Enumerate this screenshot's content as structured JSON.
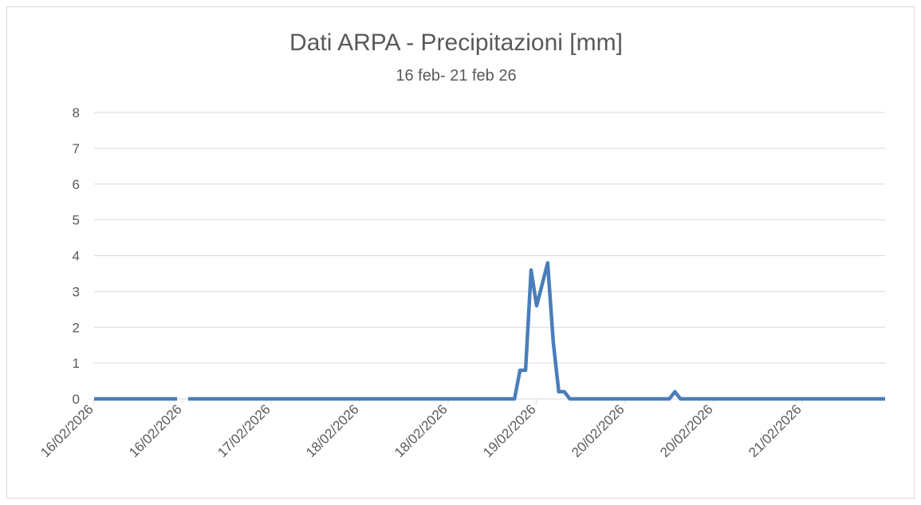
{
  "chart_data": {
    "type": "line",
    "title": "Dati ARPA - Precipitazioni [mm]",
    "subtitle": "16 feb- 21 feb  26",
    "categories": [
      "16/02/2026",
      null,
      null,
      null,
      null,
      null,
      null,
      null,
      null,
      null,
      null,
      null,
      null,
      null,
      null,
      null,
      "16/02/2026",
      null,
      null,
      null,
      null,
      null,
      null,
      null,
      null,
      null,
      null,
      null,
      null,
      null,
      null,
      null,
      "17/02/2026",
      null,
      null,
      null,
      null,
      null,
      null,
      null,
      null,
      null,
      null,
      null,
      null,
      null,
      null,
      null,
      "18/02/2026",
      null,
      null,
      null,
      null,
      null,
      null,
      null,
      null,
      null,
      null,
      null,
      null,
      null,
      null,
      null,
      "18/02/2026",
      null,
      null,
      null,
      null,
      null,
      null,
      null,
      null,
      null,
      null,
      null,
      null,
      null,
      null,
      null,
      "19/02/2026",
      null,
      null,
      null,
      null,
      null,
      null,
      null,
      null,
      null,
      null,
      null,
      null,
      null,
      null,
      null,
      "20/02/2026",
      null,
      null,
      null,
      null,
      null,
      null,
      null,
      null,
      null,
      null,
      null,
      null,
      null,
      null,
      null,
      "20/02/2026",
      null,
      null,
      null,
      null,
      null,
      null,
      null,
      null,
      null,
      null,
      null,
      null,
      null,
      null,
      null,
      "21/02/2026",
      null,
      null,
      null,
      null,
      null,
      null,
      null,
      null,
      null,
      null,
      null,
      null,
      null,
      null,
      null
    ],
    "series": [
      {
        "color": "#4a7ebb",
        "values": [
          0,
          0,
          0,
          0,
          0,
          0,
          0,
          0,
          0,
          0,
          0,
          0,
          0,
          0,
          0,
          0,
          null,
          0,
          0,
          0,
          0,
          0,
          0,
          0,
          0,
          0,
          0,
          0,
          0,
          0,
          0,
          0,
          0,
          0,
          0,
          0,
          0,
          0,
          0,
          0,
          0,
          0,
          0,
          0,
          0,
          0,
          0,
          0,
          0,
          0,
          0,
          0,
          0,
          0,
          0,
          0,
          0,
          0,
          0,
          0,
          0,
          0,
          0,
          0,
          0,
          0,
          0,
          0,
          0,
          0,
          0,
          0,
          0,
          0,
          0,
          0,
          0,
          0.8,
          0.8,
          3.6,
          2.6,
          3.2,
          3.8,
          1.6,
          0.2,
          0.2,
          0,
          0,
          0,
          0,
          0,
          0,
          0,
          0,
          0,
          0,
          0,
          0,
          0,
          0,
          0,
          0,
          0,
          0,
          0,
          0.2,
          0,
          0,
          0,
          0,
          0,
          0,
          0,
          0,
          0,
          0,
          0,
          0,
          0,
          0,
          0,
          0,
          0,
          0,
          0,
          0,
          0,
          0,
          0,
          0,
          0,
          0,
          0,
          0,
          0,
          0,
          0,
          0,
          0,
          0,
          0,
          0,
          0,
          0
        ]
      }
    ],
    "ylim": [
      0,
      8
    ],
    "yticks": [
      0,
      1,
      2,
      3,
      4,
      5,
      6,
      7,
      8
    ],
    "grid": true
  }
}
